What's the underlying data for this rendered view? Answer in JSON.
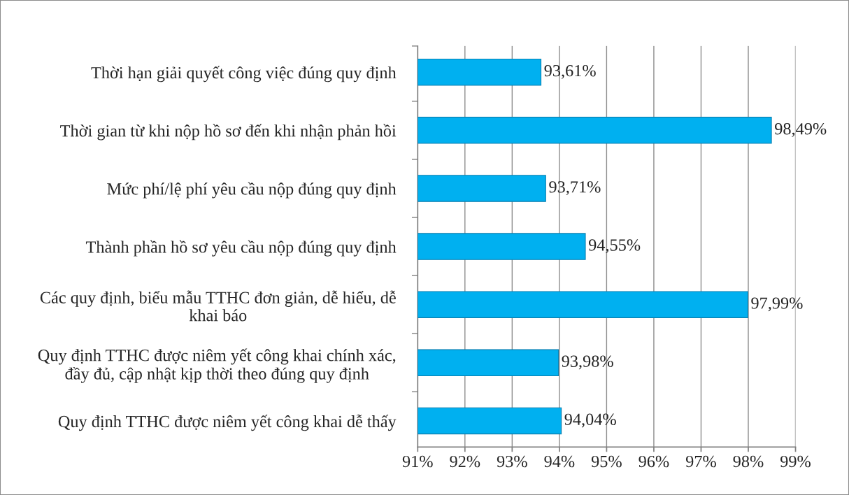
{
  "chart_data": {
    "type": "bar",
    "orientation": "horizontal",
    "categories": [
      "Thời hạn giải quyết công việc đúng quy định",
      "Thời gian từ khi nộp hồ sơ đến khi nhận phản hồi",
      "Mức phí/lệ phí yêu cầu nộp đúng quy định",
      "Thành phần hồ sơ yêu cầu nộp đúng quy định",
      "Các quy định, biểu mẫu TTHC đơn giản, dễ hiểu, dễ khai báo",
      "Quy định TTHC được niêm yết công khai chính xác, đầy đủ, cập nhật kịp thời theo đúng quy định",
      "Quy định TTHC được niêm yết công khai dễ thấy"
    ],
    "values": [
      93.61,
      98.49,
      93.71,
      94.55,
      97.99,
      93.98,
      94.04
    ],
    "value_labels": [
      "93,61%",
      "98,49%",
      "93,71%",
      "94,55%",
      "97,99%",
      "93,98%",
      "94,04%"
    ],
    "color": "#00b0f0",
    "xlim": [
      91,
      99
    ],
    "xticks": [
      {
        "value": 91,
        "label": "91%"
      },
      {
        "value": 92,
        "label": "92%"
      },
      {
        "value": 93,
        "label": "93%"
      },
      {
        "value": 94,
        "label": "94%"
      },
      {
        "value": 95,
        "label": "95%"
      },
      {
        "value": 96,
        "label": "96%"
      },
      {
        "value": 97,
        "label": "97%"
      },
      {
        "value": 98,
        "label": "98%"
      },
      {
        "value": 99,
        "label": "99%"
      }
    ],
    "grid": "x",
    "legend": false
  }
}
